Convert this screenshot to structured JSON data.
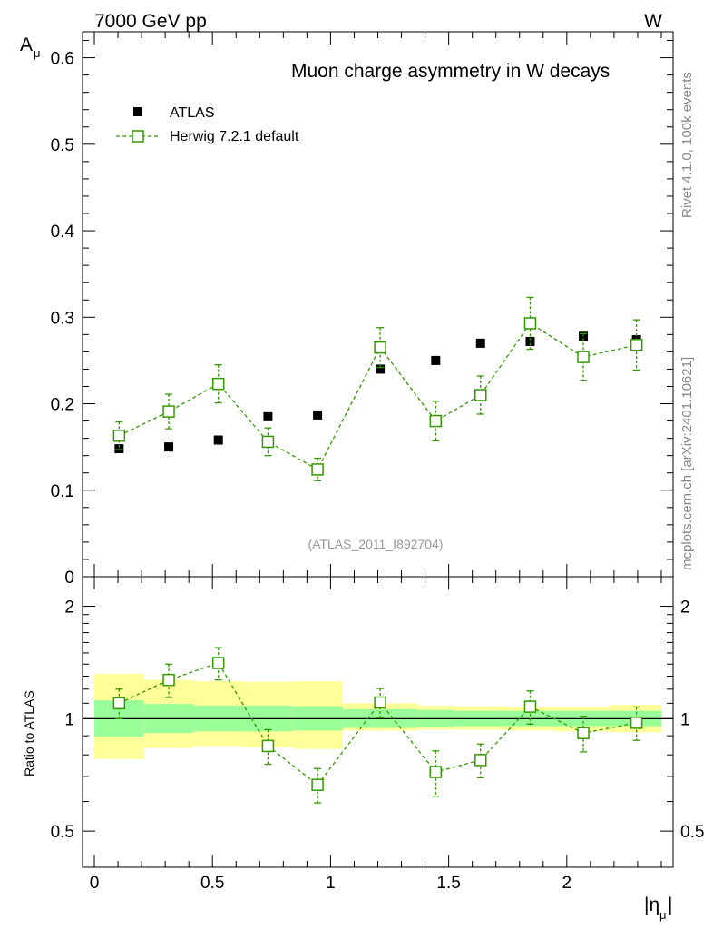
{
  "header": {
    "left": "7000 GeV pp",
    "right": "W"
  },
  "side_text": {
    "top": "Rivet 4.1.0,  100k events",
    "bottom": "mcplots.cern.ch [arXiv:2401.10621]"
  },
  "chart_data": [
    {
      "type": "scatter",
      "title": "Muon charge asymmetry in W decays",
      "ylabel_main": "A",
      "ylabel_sub": "μ",
      "xlabel_main": "|η",
      "xlabel_sub": "μ",
      "xlabel_close": "|",
      "analysis_label": "(ATLAS_2011_I892704)",
      "xlim": [
        -0.05,
        2.45
      ],
      "ylim": [
        0,
        0.63
      ],
      "yticks": [
        0,
        0.1,
        0.2,
        0.3,
        0.4,
        0.5,
        0.6
      ],
      "ytick_labels": [
        "0",
        "0.1",
        "0.2",
        "0.3",
        "0.4",
        "0.5",
        "0.6"
      ],
      "legend": {
        "position": "top-left",
        "entries": [
          "ATLAS",
          "Herwig 7.2.1 default"
        ]
      },
      "series": [
        {
          "name": "ATLAS",
          "x": [
            0.105,
            0.315,
            0.525,
            0.735,
            0.945,
            1.21,
            1.445,
            1.635,
            1.845,
            2.07,
            2.295
          ],
          "y": [
            0.148,
            0.15,
            0.158,
            0.185,
            0.187,
            0.24,
            0.25,
            0.27,
            0.272,
            0.278,
            0.274
          ],
          "color": "#000000"
        },
        {
          "name": "Herwig 7.2.1 default",
          "x": [
            0.105,
            0.315,
            0.525,
            0.735,
            0.945,
            1.21,
            1.445,
            1.635,
            1.845,
            2.07,
            2.295
          ],
          "y": [
            0.163,
            0.191,
            0.223,
            0.156,
            0.124,
            0.265,
            0.18,
            0.21,
            0.293,
            0.254,
            0.268
          ],
          "err": [
            0.016,
            0.02,
            0.022,
            0.016,
            0.013,
            0.023,
            0.023,
            0.022,
            0.03,
            0.027,
            0.029
          ],
          "color": "#339900"
        }
      ]
    },
    {
      "type": "scatter",
      "ylabel": "Ratio to ATLAS",
      "ylim": [
        0.4,
        2.4
      ],
      "scale": "log",
      "yticks": [
        0.5,
        1,
        2
      ],
      "ytick_labels": [
        "0.5",
        "1",
        "2"
      ],
      "xticks": [
        0,
        0.5,
        1,
        1.5,
        2
      ],
      "xtick_labels": [
        "0",
        "0.5",
        "1",
        "1.5",
        "2"
      ],
      "bands": {
        "edges": [
          0,
          0.21,
          0.42,
          0.63,
          0.84,
          1.05,
          1.37,
          1.52,
          1.74,
          1.95,
          2.18,
          2.4
        ],
        "stat_low": [
          0.895,
          0.915,
          0.925,
          0.925,
          0.93,
          0.945,
          0.95,
          0.955,
          0.955,
          0.955,
          0.955
        ],
        "stat_high": [
          1.12,
          1.095,
          1.085,
          1.085,
          1.08,
          1.06,
          1.055,
          1.05,
          1.05,
          1.05,
          1.05
        ],
        "tot_low": [
          0.78,
          0.835,
          0.845,
          0.84,
          0.83,
          0.93,
          0.935,
          0.935,
          0.93,
          0.925,
          0.92
        ],
        "tot_high": [
          1.32,
          1.27,
          1.26,
          1.255,
          1.26,
          1.1,
          1.085,
          1.08,
          1.075,
          1.075,
          1.09
        ],
        "stat_color": "#99ff99",
        "tot_color": "#ffff99"
      },
      "series": [
        {
          "name": "Herwig 7.2.1 default / ATLAS",
          "x": [
            0.105,
            0.315,
            0.525,
            0.735,
            0.945,
            1.21,
            1.445,
            1.635,
            1.845,
            2.07,
            2.295
          ],
          "y": [
            1.1,
            1.27,
            1.41,
            0.845,
            0.665,
            1.105,
            0.72,
            0.775,
            1.077,
            0.915,
            0.975
          ],
          "err": [
            0.1,
            0.13,
            0.14,
            0.09,
            0.07,
            0.1,
            0.1,
            0.08,
            0.11,
            0.1,
            0.1
          ],
          "color": "#339900"
        }
      ]
    }
  ]
}
